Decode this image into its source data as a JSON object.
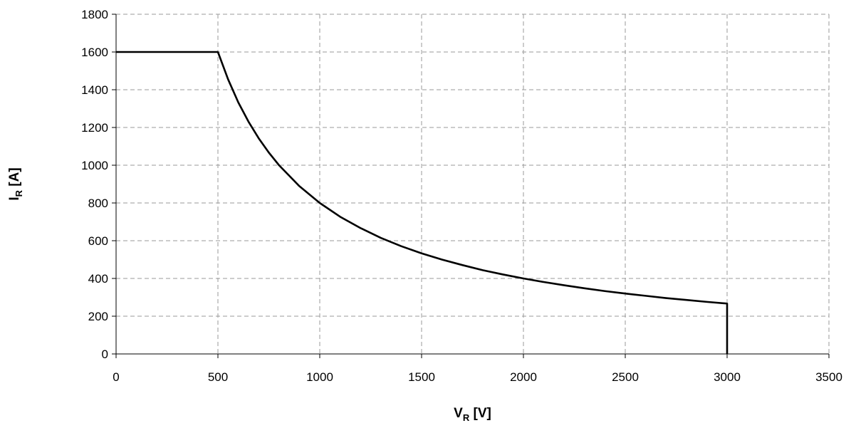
{
  "chart_data": {
    "type": "line",
    "title": "",
    "xlabel": {
      "main": "V",
      "sub": "R",
      "unit": " [V]"
    },
    "ylabel": {
      "main": "I",
      "sub": "R",
      "unit": " [A]"
    },
    "xlim": [
      0,
      3500
    ],
    "ylim": [
      0,
      1800
    ],
    "xticks": [
      0,
      500,
      1000,
      1500,
      2000,
      2500,
      3000,
      3500
    ],
    "yticks": [
      0,
      200,
      400,
      600,
      800,
      1000,
      1200,
      1400,
      1600,
      1800
    ],
    "grid": true,
    "legend": "none",
    "colors": {
      "line": "#000000",
      "grid": "#9a9a9a"
    },
    "series": [
      {
        "x": [
          0,
          500,
          550,
          600,
          650,
          700,
          750,
          800,
          900,
          1000,
          1100,
          1200,
          1300,
          1400,
          1500,
          1600,
          1700,
          1800,
          1900,
          2000,
          2100,
          2200,
          2300,
          2400,
          2500,
          2600,
          2700,
          2800,
          2900,
          3000,
          3000
        ],
        "y": [
          1600,
          1600,
          1455,
          1333,
          1231,
          1143,
          1067,
          1000,
          889,
          800,
          727,
          667,
          615,
          571,
          533,
          500,
          471,
          444,
          421,
          400,
          381,
          364,
          348,
          333,
          320,
          308,
          296,
          286,
          276,
          267,
          0
        ]
      }
    ]
  }
}
